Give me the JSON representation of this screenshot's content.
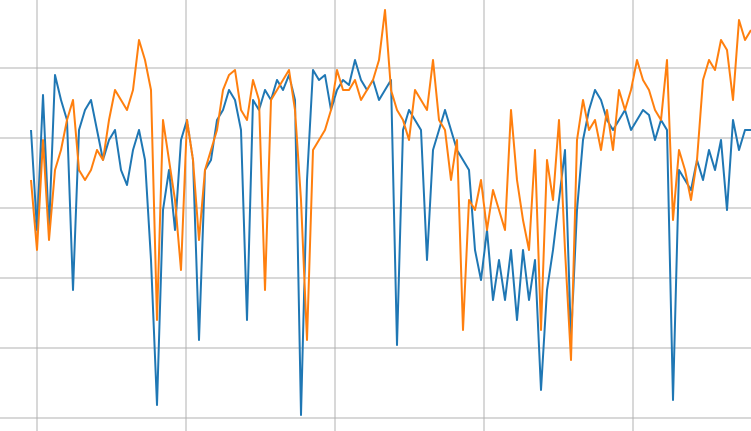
{
  "chart_data": {
    "type": "line",
    "grid": true,
    "xlim": [
      -37,
      714
    ],
    "xticks": [
      0,
      149,
      298,
      447,
      596
    ],
    "ylim": [
      -13,
      418
    ],
    "yticks": [
      0,
      70,
      140,
      210,
      280,
      350
    ],
    "x": [
      -6,
      0,
      6,
      12,
      18,
      24,
      30,
      36,
      42,
      48,
      54,
      60,
      66,
      72,
      78,
      84,
      90,
      96,
      102,
      108,
      114,
      120,
      126,
      132,
      138,
      144,
      150,
      156,
      162,
      168,
      174,
      180,
      186,
      192,
      198,
      204,
      210,
      216,
      222,
      228,
      234,
      240,
      246,
      252,
      258,
      264,
      270,
      276,
      282,
      288,
      294,
      300,
      306,
      312,
      318,
      324,
      330,
      336,
      342,
      348,
      354,
      360,
      366,
      372,
      378,
      384,
      390,
      396,
      402,
      408,
      414,
      420,
      426,
      432,
      438,
      444,
      450,
      456,
      462,
      468,
      474,
      480,
      486,
      492,
      498,
      504,
      510,
      516,
      522,
      528,
      534,
      540,
      546,
      552,
      558,
      564,
      570,
      576,
      582,
      588,
      594,
      600,
      606,
      612,
      618,
      624,
      630,
      636,
      642,
      648,
      654,
      660,
      666,
      672,
      678,
      684,
      690,
      696,
      702,
      708,
      714
    ],
    "series": [
      {
        "color": "#1f77b4",
        "values": [
          288,
          188,
          323,
          188,
          343,
          318,
          298,
          128,
          288,
          308,
          318,
          288,
          258,
          278,
          288,
          248,
          233,
          268,
          288,
          258,
          158,
          13,
          208,
          248,
          188,
          278,
          298,
          258,
          78,
          248,
          258,
          298,
          308,
          328,
          318,
          288,
          98,
          318,
          308,
          328,
          318,
          338,
          328,
          343,
          318,
          3,
          238,
          348,
          338,
          343,
          308,
          328,
          338,
          333,
          358,
          338,
          328,
          338,
          318,
          328,
          338,
          73,
          288,
          308,
          298,
          288,
          158,
          268,
          288,
          308,
          288,
          268,
          258,
          248,
          168,
          138,
          188,
          118,
          158,
          118,
          168,
          98,
          168,
          118,
          158,
          28,
          128,
          168,
          218,
          268,
          78,
          208,
          278,
          308,
          328,
          318,
          298,
          288,
          298,
          308,
          288,
          298,
          308,
          303,
          278,
          298,
          288,
          18,
          248,
          238,
          228,
          258,
          238,
          268,
          248,
          278,
          208,
          298,
          268,
          288,
          288
        ]
      },
      {
        "color": "#ff7f0e",
        "values": [
          238,
          168,
          278,
          178,
          248,
          268,
          298,
          318,
          248,
          238,
          248,
          268,
          258,
          298,
          328,
          318,
          308,
          328,
          378,
          358,
          328,
          98,
          298,
          258,
          218,
          148,
          298,
          258,
          178,
          248,
          268,
          288,
          328,
          343,
          348,
          308,
          298,
          338,
          318,
          128,
          318,
          328,
          338,
          348,
          308,
          218,
          78,
          268,
          278,
          288,
          308,
          348,
          328,
          328,
          338,
          318,
          328,
          338,
          358,
          408,
          328,
          308,
          298,
          278,
          328,
          318,
          308,
          358,
          298,
          288,
          238,
          278,
          88,
          218,
          208,
          238,
          188,
          228,
          208,
          188,
          308,
          238,
          198,
          168,
          268,
          88,
          258,
          218,
          298,
          168,
          58,
          278,
          318,
          288,
          298,
          268,
          308,
          268,
          328,
          308,
          328,
          358,
          338,
          328,
          308,
          298,
          358,
          198,
          268,
          248,
          218,
          258,
          338,
          358,
          348,
          378,
          368,
          318,
          398,
          378,
          388
        ]
      }
    ]
  }
}
